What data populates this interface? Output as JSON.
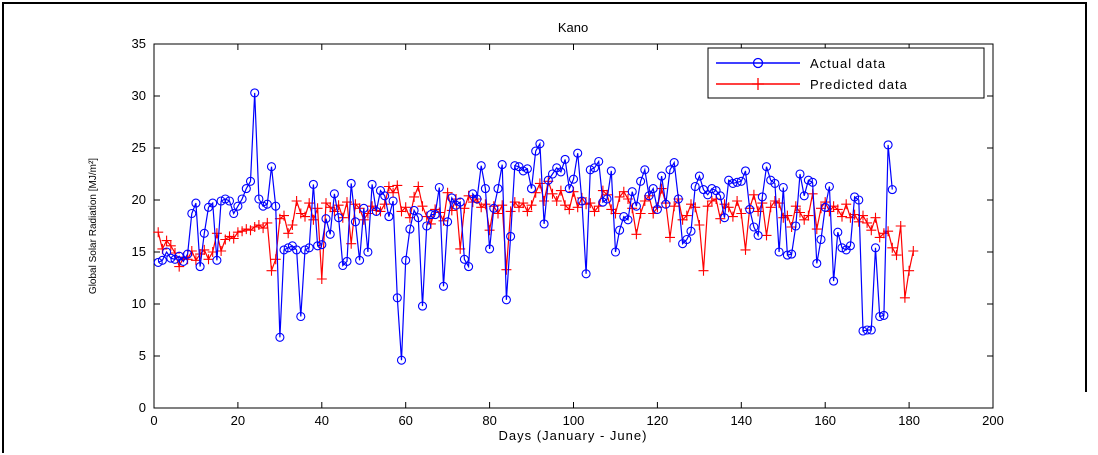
{
  "chart_data": {
    "type": "line",
    "title": "Kano",
    "xlabel": "Days (January - June)",
    "ylabel": "Global Solar Radiation [MJ/m²]",
    "xlim": [
      0,
      200
    ],
    "ylim": [
      0,
      35
    ],
    "xticks": [
      0,
      20,
      40,
      60,
      80,
      100,
      120,
      140,
      160,
      180,
      200
    ],
    "yticks": [
      0,
      5,
      10,
      15,
      20,
      25,
      30,
      35
    ],
    "grid": false,
    "legend": "top-right",
    "series": [
      {
        "name": "Actual data",
        "color": "#0000ff",
        "marker": "circle",
        "values": [
          14.0,
          14.2,
          15.0,
          14.4,
          14.3,
          14.6,
          14.1,
          14.8,
          18.7,
          19.7,
          13.6,
          16.8,
          19.3,
          19.7,
          14.2,
          19.9,
          20.1,
          19.9,
          18.7,
          19.4,
          20.1,
          21.1,
          21.8,
          30.3,
          20.1,
          19.4,
          19.6,
          23.2,
          19.4,
          6.8,
          15.2,
          15.4,
          15.6,
          15.2,
          8.8,
          15.2,
          15.4,
          21.5,
          15.6,
          15.7,
          18.2,
          16.7,
          20.6,
          18.3,
          13.7,
          14.1,
          21.6,
          17.9,
          14.2,
          19.2,
          15.0,
          21.5,
          18.9,
          20.9,
          20.4,
          18.4,
          19.9,
          10.6,
          4.6,
          14.2,
          17.2,
          19.0,
          18.3,
          9.8,
          17.5,
          18.6,
          18.6,
          21.2,
          11.7,
          17.9,
          20.2,
          19.5,
          19.8,
          14.3,
          13.6,
          20.6,
          20.1,
          23.3,
          21.1,
          15.3,
          19.2,
          21.1,
          23.4,
          10.4,
          16.5,
          23.3,
          23.2,
          22.8,
          23.0,
          21.1,
          24.7,
          25.4,
          17.7,
          21.9,
          22.5,
          23.1,
          22.7,
          23.9,
          21.1,
          22.0,
          24.5,
          19.9,
          12.9,
          22.9,
          23.1,
          23.7,
          19.8,
          20.1,
          22.8,
          15.0,
          17.1,
          18.4,
          18.1,
          20.8,
          19.4,
          21.8,
          22.9,
          20.4,
          21.1,
          19.1,
          22.3,
          19.6,
          22.9,
          23.6,
          20.1,
          15.8,
          16.2,
          17.0,
          21.3,
          22.3,
          21.0,
          20.5,
          21.1,
          20.9,
          20.4,
          18.3,
          21.9,
          21.6,
          21.7,
          21.8,
          22.8,
          19.1,
          17.4,
          16.6,
          20.3,
          23.2,
          21.9,
          21.6,
          15.0,
          21.2,
          14.7,
          14.8,
          17.5,
          22.5,
          20.4,
          21.9,
          21.7,
          13.9,
          16.2,
          19.3,
          21.3,
          12.2,
          16.9,
          15.4,
          15.2,
          15.6,
          20.3,
          20.0,
          7.4,
          7.5,
          7.5,
          15.4,
          8.8,
          8.9,
          25.3,
          21.0
        ]
      },
      {
        "name": "Predicted data",
        "color": "#ff0000",
        "marker": "plus",
        "values": [
          16.9,
          15.3,
          16.1,
          15.6,
          14.9,
          13.6,
          14.5,
          14.3,
          15.1,
          14.2,
          14.8,
          15.2,
          14.3,
          15.0,
          16.8,
          15.1,
          16.2,
          16.5,
          16.3,
          16.9,
          17.0,
          17.2,
          17.1,
          17.4,
          17.6,
          17.3,
          17.8,
          13.2,
          14.3,
          18.2,
          18.5,
          16.8,
          17.6,
          19.9,
          18.7,
          18.4,
          19.7,
          18.1,
          19.2,
          12.4,
          19.7,
          19.3,
          18.9,
          19.5,
          18.3,
          19.8,
          15.8,
          19.6,
          19.2,
          18.1,
          18.7,
          19.4,
          19.0,
          18.9,
          19.6,
          21.3,
          20.7,
          21.4,
          18.9,
          19.3,
          18.3,
          20.3,
          21.3,
          19.4,
          18.4,
          17.7,
          19.1,
          18.8,
          18.0,
          20.7,
          19.0,
          20.1,
          15.3,
          19.2,
          20.4,
          19.8,
          20.1,
          19.3,
          19.6,
          17.1,
          19.4,
          18.7,
          19.5,
          13.3,
          18.9,
          19.8,
          19.3,
          19.7,
          18.9,
          19.5,
          20.7,
          21.6,
          19.9,
          21.8,
          20.6,
          19.9,
          20.9,
          19.5,
          19.1,
          20.8,
          19.3,
          20.2,
          19.6,
          19.7,
          18.9,
          19.4,
          20.9,
          20.5,
          19.1,
          18.7,
          20.3,
          20.8,
          20.1,
          19.2,
          16.7,
          18.7,
          19.9,
          20.4,
          18.7,
          19.3,
          21.1,
          19.7,
          16.4,
          19.4,
          20.1,
          18.1,
          18.5,
          19.6,
          19.3,
          17.6,
          13.2,
          19.4,
          19.9,
          20.1,
          18.2,
          19.6,
          19.3,
          18.4,
          19.9,
          18.7,
          15.2,
          19.2,
          20.5,
          18.9,
          19.7,
          16.6,
          19.3,
          19.9,
          19.7,
          18.3,
          18.5,
          17.4,
          19.4,
          18.8,
          18.1,
          18.5,
          20.6,
          17.2,
          19.2,
          19.8,
          18.9,
          19.4,
          19.1,
          18.4,
          19.6,
          18.3,
          18.6,
          17.9,
          18.5,
          17.8,
          17.1,
          18.3,
          16.4,
          16.8,
          17.0,
          15.4,
          14.7,
          17.5,
          10.6,
          13.2,
          15.1
        ]
      }
    ]
  }
}
